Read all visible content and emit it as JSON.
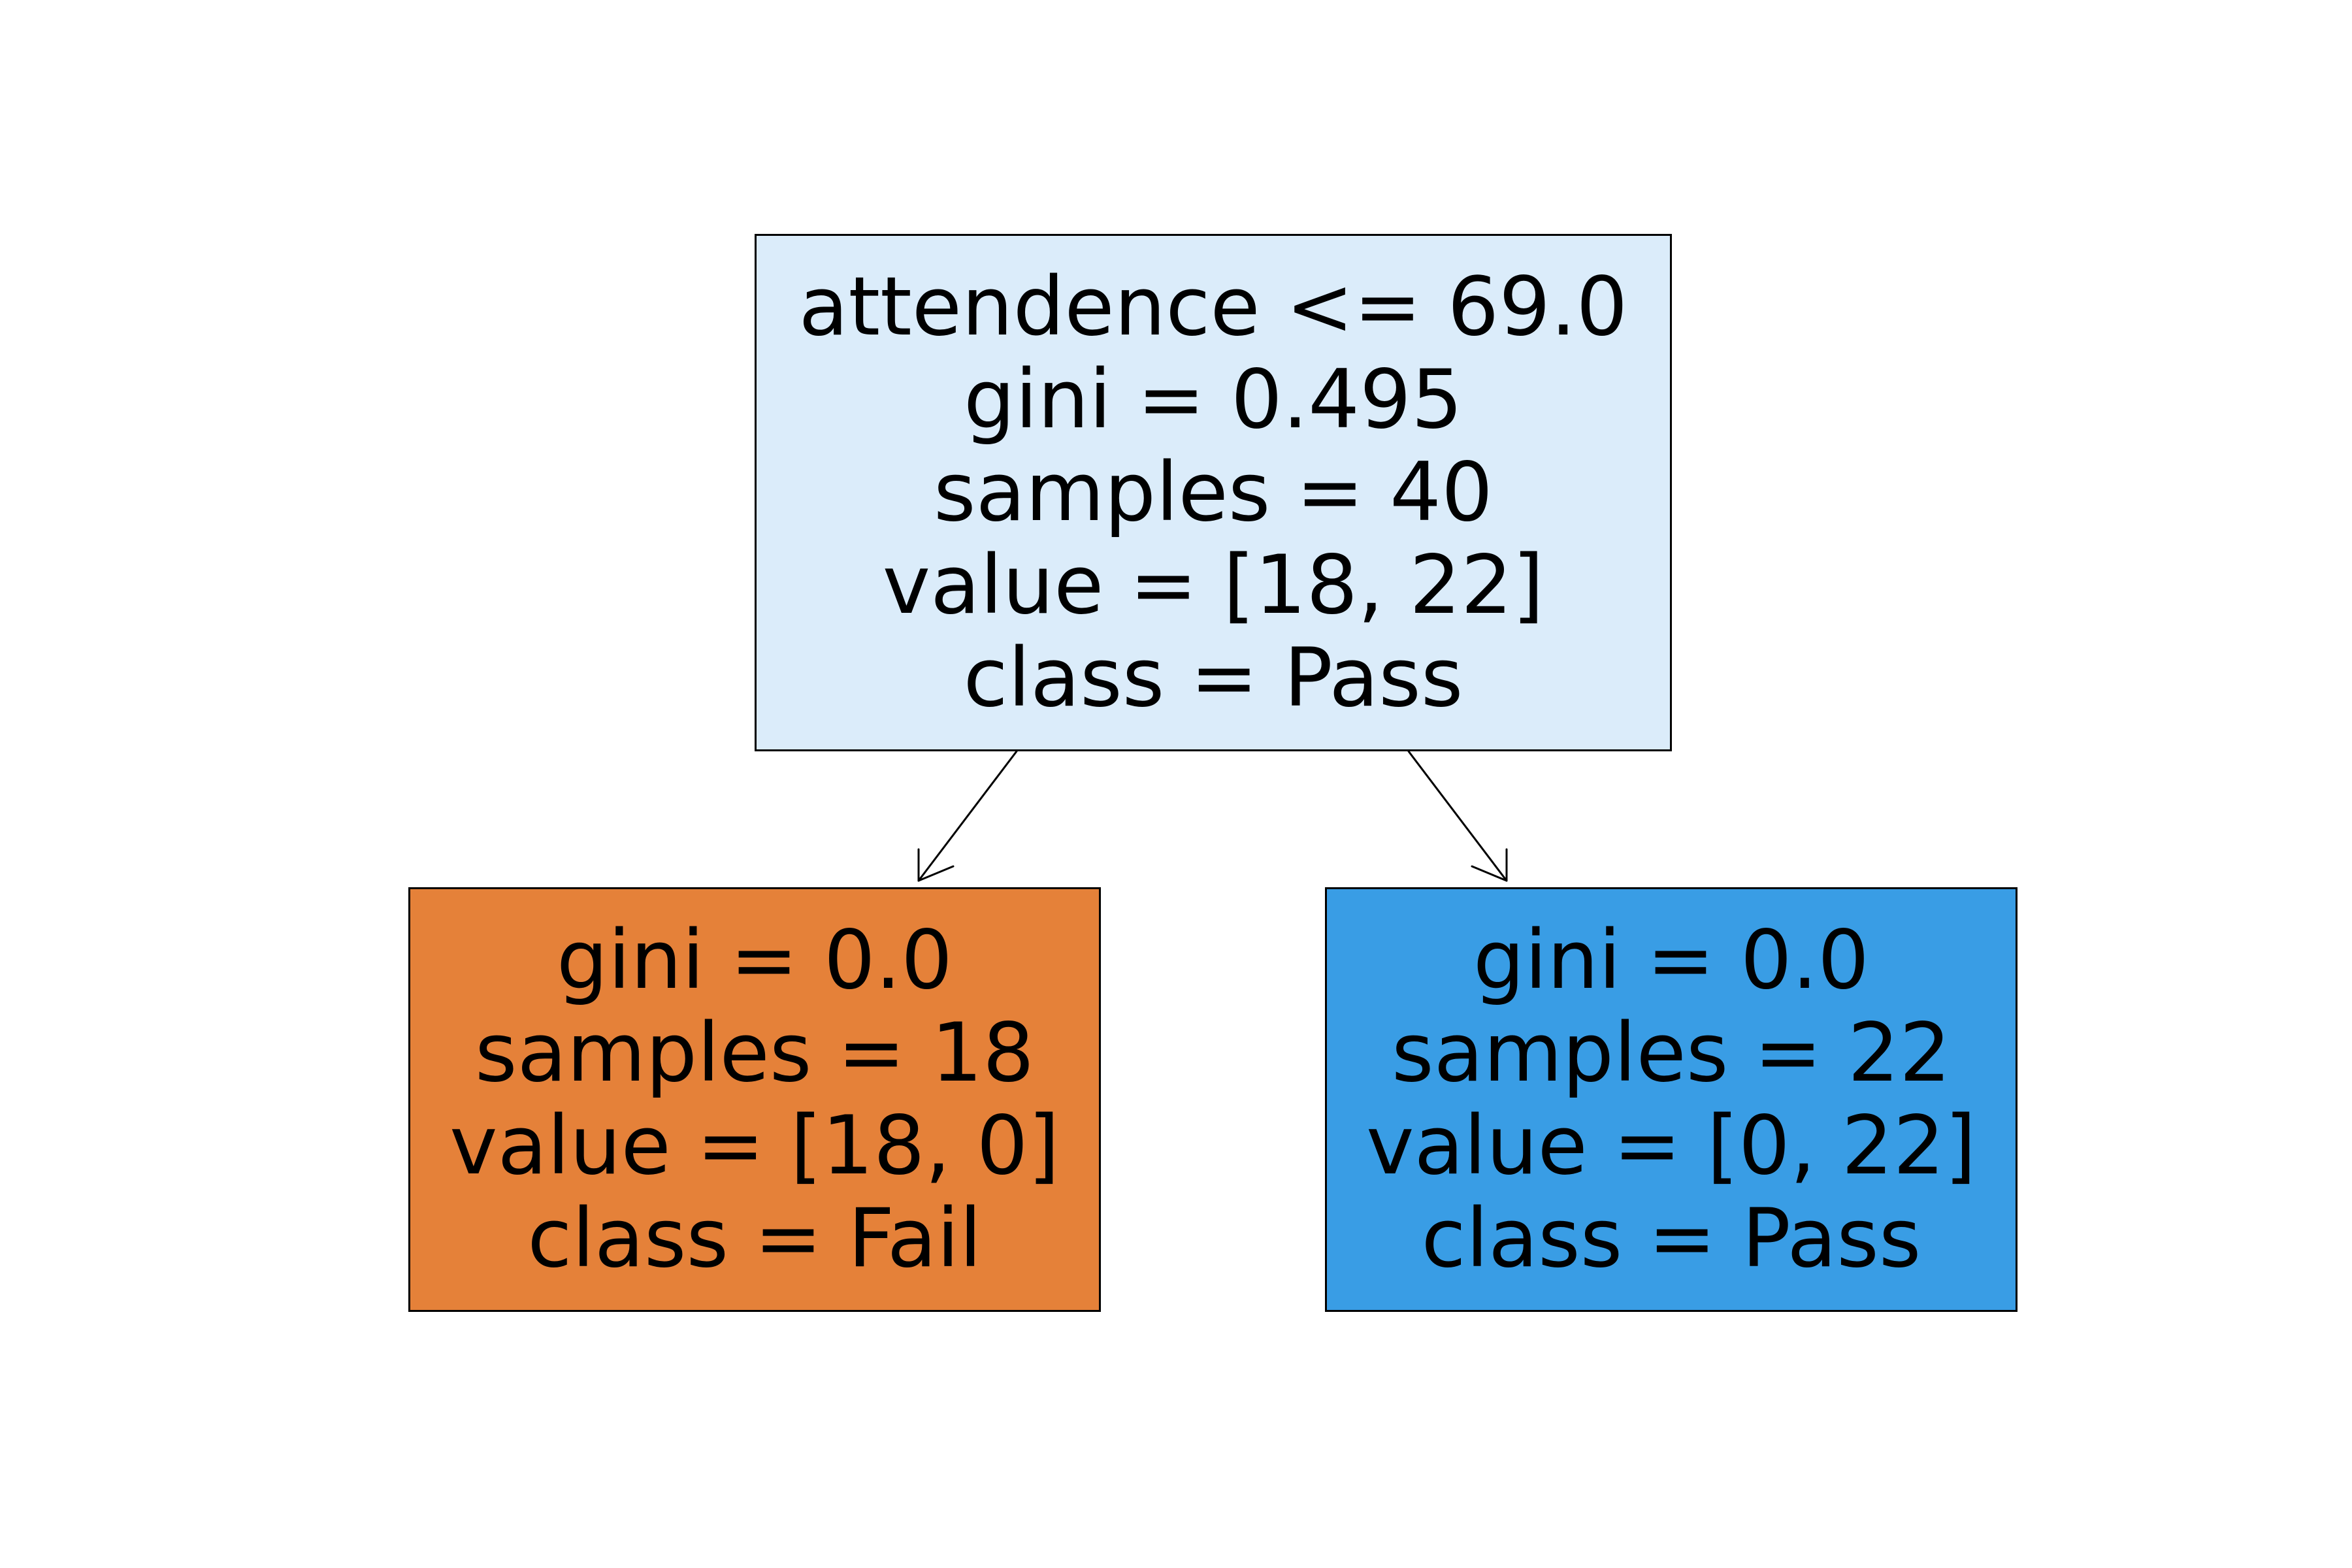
{
  "tree": {
    "root": {
      "lines": [
        "attendence <= 69.0",
        "gini = 0.495",
        "samples = 40",
        "value = [18, 22]",
        "class = Pass"
      ],
      "fill": "#dbecfa"
    },
    "left": {
      "lines": [
        "gini = 0.0",
        "samples = 18",
        "value = [18, 0]",
        "class = Fail"
      ],
      "fill": "#e58139"
    },
    "right": {
      "lines": [
        "gini = 0.0",
        "samples = 22",
        "value = [0, 22]",
        "class = Pass"
      ],
      "fill": "#399de5"
    }
  }
}
